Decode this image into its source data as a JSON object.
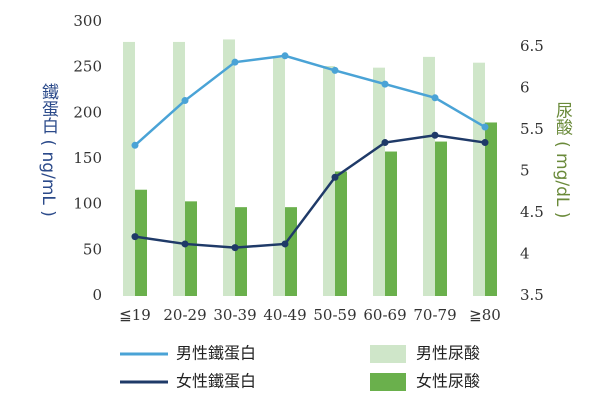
{
  "chart_data": {
    "type": "combo",
    "categories": [
      "≦19",
      "20-29",
      "30-39",
      "40-49",
      "50-59",
      "60-69",
      "70-79",
      "≧80"
    ],
    "ylabel": "鐵蛋白 ( ng/mL )",
    "ylabel_color": "#2b4a8a",
    "y2label": "尿酸 ( mg/dL )",
    "y2label_color": "#6a8a3a",
    "ylim": [
      0,
      300
    ],
    "yticks": [
      0,
      50,
      100,
      150,
      200,
      250,
      300
    ],
    "y2lim": [
      3.5,
      6.8
    ],
    "y2ticks": [
      3.5,
      4,
      4.5,
      5,
      5.5,
      6,
      6.5
    ],
    "series": [
      {
        "name": "男性尿酸",
        "type": "bar",
        "axis": "y2",
        "color": "#cfe6c9",
        "values": [
          6.56,
          6.56,
          6.59,
          6.37,
          6.27,
          6.25,
          6.38,
          6.31
        ]
      },
      {
        "name": "女性尿酸",
        "type": "bar",
        "axis": "y2",
        "color": "#6ab04c",
        "values": [
          4.78,
          4.64,
          4.57,
          4.57,
          5.0,
          5.24,
          5.36,
          5.59
        ]
      },
      {
        "name": "男性鐵蛋白",
        "type": "line",
        "color": "#4aa3d6",
        "values": [
          165,
          214,
          256,
          263,
          247,
          232,
          217,
          185
        ]
      },
      {
        "name": "女性鐵蛋白",
        "type": "line",
        "color": "#1f3a68",
        "values": [
          65,
          57,
          53,
          57,
          130,
          168,
          176,
          168
        ]
      }
    ]
  }
}
